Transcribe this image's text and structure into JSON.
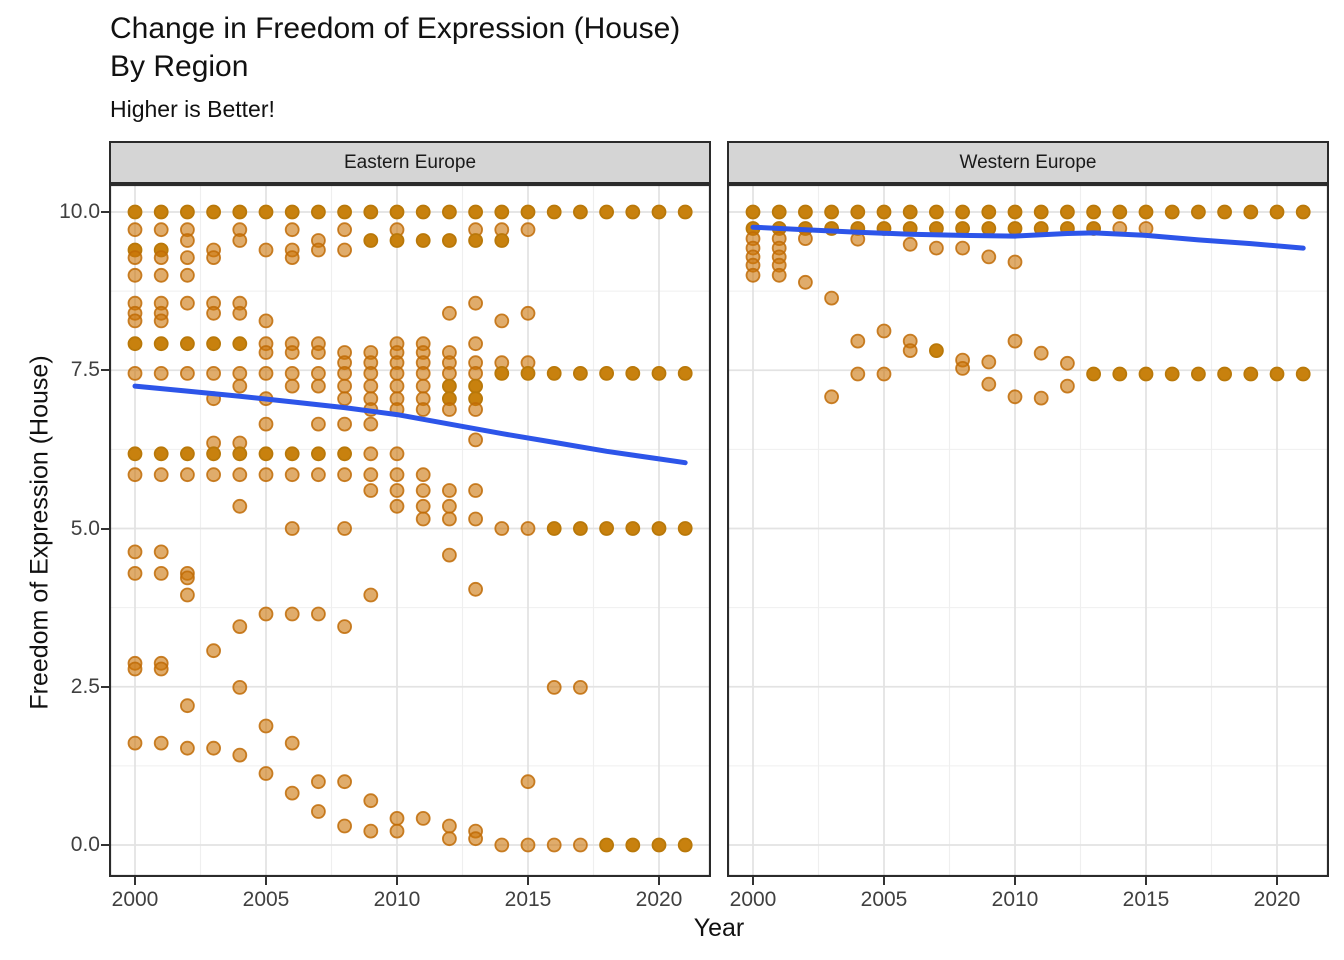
{
  "title": {
    "line1": "Change in Freedom of Expression (House)",
    "line2": "By Region"
  },
  "subtitle": "Higher is Better!",
  "axes": {
    "x_label": "Year",
    "y_label": "Freedom of Expression (House)",
    "x_ticks": [
      2000,
      2005,
      2010,
      2015,
      2020
    ],
    "x_minor": [
      2002.5,
      2007.5,
      2012.5,
      2017.5
    ],
    "y_ticks": [
      "10.0",
      "7.5",
      "5.0",
      "2.5",
      "0.0"
    ],
    "y_tick_values": [
      10,
      7.5,
      5,
      2.5,
      0
    ],
    "y_minor": [
      8.75,
      6.25,
      3.75,
      1.25
    ],
    "x_range": [
      1999,
      2022
    ],
    "y_range": [
      -0.5,
      10.5
    ]
  },
  "style": {
    "point_light_fill": "rgba(203,116,8,0.6)",
    "point_light_stroke": "rgba(191,107,6,0.85)",
    "point_dark_fill": "#C8810E",
    "point_dark_stroke": "#B97809",
    "trend_color": "#2D55E9",
    "strip_bg": "#D5D5D5",
    "panel_border": "#2B2B2B",
    "grid_major": "#E3E3E3",
    "grid_minor": "#EFEFEF",
    "tick_text": "#404040"
  },
  "chart_data": {
    "type": "scatter",
    "title": "Change in Freedom of Expression (House) By Region",
    "subtitle": "Higher is Better!",
    "xlabel": "Year",
    "ylabel": "Freedom of Expression (House)",
    "facets": [
      {
        "label": "Eastern Europe",
        "point_rows": [
          {
            "value": 10.0,
            "weight": 2,
            "years": [
              2000,
              2001,
              2002,
              2003,
              2004,
              2005,
              2006,
              2007,
              2008,
              2009,
              2010,
              2011,
              2012,
              2013,
              2014,
              2015,
              2016,
              2017,
              2018,
              2019,
              2020,
              2021
            ]
          },
          {
            "value": 9.72,
            "weight": 1,
            "years": [
              2000,
              2001,
              2002,
              2004,
              2006,
              2008,
              2010,
              2013,
              2014,
              2015
            ]
          },
          {
            "value": 9.55,
            "weight": 1,
            "years": [
              2002,
              2004,
              2007
            ]
          },
          {
            "value": 9.55,
            "weight": 2,
            "years": [
              2009,
              2010,
              2011,
              2012,
              2013,
              2014
            ]
          },
          {
            "value": 9.4,
            "weight": 2,
            "years": [
              2000,
              2001
            ]
          },
          {
            "value": 9.4,
            "weight": 1,
            "years": [
              2003,
              2005,
              2006,
              2007,
              2008
            ]
          },
          {
            "value": 9.28,
            "weight": 1,
            "years": [
              2000,
              2001,
              2002,
              2003,
              2006
            ]
          },
          {
            "value": 9.0,
            "weight": 1,
            "years": [
              2000,
              2001,
              2002
            ]
          },
          {
            "value": 8.56,
            "weight": 1,
            "years": [
              2000,
              2001,
              2002,
              2003,
              2004,
              2013
            ]
          },
          {
            "value": 8.4,
            "weight": 1,
            "years": [
              2000,
              2001,
              2003,
              2004,
              2012,
              2015
            ]
          },
          {
            "value": 8.28,
            "weight": 1,
            "years": [
              2000,
              2001,
              2005,
              2014
            ]
          },
          {
            "value": 7.92,
            "weight": 2,
            "years": [
              2000,
              2001,
              2002,
              2003,
              2004
            ]
          },
          {
            "value": 7.92,
            "weight": 1,
            "years": [
              2005,
              2006,
              2007,
              2010,
              2011,
              2013
            ]
          },
          {
            "value": 7.78,
            "weight": 1,
            "years": [
              2005,
              2006,
              2007,
              2008,
              2009,
              2010,
              2011,
              2012
            ]
          },
          {
            "value": 7.62,
            "weight": 1,
            "years": [
              2008,
              2009,
              2010,
              2011,
              2012,
              2013,
              2014,
              2015
            ]
          },
          {
            "value": 7.45,
            "weight": 1,
            "years": [
              2000,
              2001,
              2002,
              2003,
              2004,
              2005,
              2006,
              2007,
              2008,
              2009,
              2010,
              2011,
              2012,
              2013
            ]
          },
          {
            "value": 7.45,
            "weight": 2,
            "years": [
              2014,
              2015,
              2016,
              2017,
              2018,
              2019,
              2020,
              2021
            ]
          },
          {
            "value": 7.25,
            "weight": 1,
            "years": [
              2004,
              2006,
              2007,
              2008,
              2009,
              2010,
              2011
            ]
          },
          {
            "value": 7.25,
            "weight": 2,
            "years": [
              2012,
              2013
            ]
          },
          {
            "value": 7.05,
            "weight": 1,
            "years": [
              2003,
              2005,
              2008,
              2009,
              2010,
              2011
            ]
          },
          {
            "value": 7.05,
            "weight": 2,
            "years": [
              2012,
              2013
            ]
          },
          {
            "value": 6.88,
            "weight": 1,
            "years": [
              2009,
              2010,
              2011,
              2012,
              2013
            ]
          },
          {
            "value": 6.65,
            "weight": 1,
            "years": [
              2005,
              2007,
              2008,
              2009
            ]
          },
          {
            "value": 6.4,
            "weight": 1,
            "years": [
              2013
            ]
          },
          {
            "value": 6.35,
            "weight": 1,
            "years": [
              2003,
              2004
            ]
          },
          {
            "value": 6.18,
            "weight": 2,
            "years": [
              2000,
              2001,
              2002,
              2003,
              2004,
              2005,
              2006,
              2007,
              2008
            ]
          },
          {
            "value": 6.18,
            "weight": 1,
            "years": [
              2009,
              2010
            ]
          },
          {
            "value": 5.85,
            "weight": 1,
            "years": [
              2000,
              2001,
              2002,
              2003,
              2004,
              2005,
              2006,
              2007,
              2008,
              2009,
              2010,
              2011
            ]
          },
          {
            "value": 5.6,
            "weight": 1,
            "years": [
              2009,
              2010,
              2011,
              2012,
              2013
            ]
          },
          {
            "value": 5.35,
            "weight": 1,
            "years": [
              2004,
              2010,
              2011,
              2012
            ]
          },
          {
            "value": 5.15,
            "weight": 1,
            "years": [
              2011,
              2012,
              2013
            ]
          },
          {
            "value": 5.0,
            "weight": 1,
            "years": [
              2006,
              2008,
              2014,
              2015
            ]
          },
          {
            "value": 5.0,
            "weight": 2,
            "years": [
              2016,
              2017,
              2018,
              2019,
              2020,
              2021
            ]
          },
          {
            "value": 4.63,
            "weight": 1,
            "years": [
              2000,
              2001
            ]
          },
          {
            "value": 4.58,
            "weight": 1,
            "years": [
              2012
            ]
          },
          {
            "value": 4.29,
            "weight": 1,
            "years": [
              2000,
              2001,
              2002
            ]
          },
          {
            "value": 4.22,
            "weight": 1,
            "years": [
              2002
            ]
          },
          {
            "value": 4.04,
            "weight": 1,
            "years": [
              2013
            ]
          },
          {
            "value": 3.95,
            "weight": 1,
            "years": [
              2002,
              2009
            ]
          },
          {
            "value": 3.65,
            "weight": 1,
            "years": [
              2005,
              2006,
              2007
            ]
          },
          {
            "value": 3.45,
            "weight": 1,
            "years": [
              2004,
              2008
            ]
          },
          {
            "value": 3.07,
            "weight": 1,
            "years": [
              2003
            ]
          },
          {
            "value": 2.87,
            "weight": 1,
            "years": [
              2000,
              2001
            ]
          },
          {
            "value": 2.78,
            "weight": 1,
            "years": [
              2000,
              2001
            ]
          },
          {
            "value": 2.49,
            "weight": 1,
            "years": [
              2004,
              2016,
              2017
            ]
          },
          {
            "value": 2.2,
            "weight": 1,
            "years": [
              2002
            ]
          },
          {
            "value": 1.88,
            "weight": 1,
            "years": [
              2005
            ]
          },
          {
            "value": 1.61,
            "weight": 1,
            "years": [
              2000,
              2001,
              2006
            ]
          },
          {
            "value": 1.53,
            "weight": 1,
            "years": [
              2002,
              2003
            ]
          },
          {
            "value": 1.42,
            "weight": 1,
            "years": [
              2004
            ]
          },
          {
            "value": 1.13,
            "weight": 1,
            "years": [
              2005
            ]
          },
          {
            "value": 1.0,
            "weight": 1,
            "years": [
              2007,
              2008,
              2015
            ]
          },
          {
            "value": 0.82,
            "weight": 1,
            "years": [
              2006
            ]
          },
          {
            "value": 0.7,
            "weight": 1,
            "years": [
              2009
            ]
          },
          {
            "value": 0.53,
            "weight": 1,
            "years": [
              2007
            ]
          },
          {
            "value": 0.42,
            "weight": 1,
            "years": [
              2010,
              2011
            ]
          },
          {
            "value": 0.3,
            "weight": 1,
            "years": [
              2008,
              2012
            ]
          },
          {
            "value": 0.22,
            "weight": 1,
            "years": [
              2009,
              2010,
              2013
            ]
          },
          {
            "value": 0.1,
            "weight": 1,
            "years": [
              2012,
              2013
            ]
          },
          {
            "value": 0.0,
            "weight": 1,
            "years": [
              2014,
              2015,
              2016,
              2017
            ]
          },
          {
            "value": 0.0,
            "weight": 2,
            "years": [
              2018,
              2019,
              2020,
              2021
            ]
          }
        ],
        "trend": [
          [
            2000,
            7.25
          ],
          [
            2002,
            7.17
          ],
          [
            2004,
            7.09
          ],
          [
            2006,
            7.0
          ],
          [
            2008,
            6.91
          ],
          [
            2010,
            6.8
          ],
          [
            2012,
            6.65
          ],
          [
            2014,
            6.5
          ],
          [
            2016,
            6.36
          ],
          [
            2018,
            6.22
          ],
          [
            2020,
            6.1
          ],
          [
            2021,
            6.04
          ]
        ]
      },
      {
        "label": "Western Europe",
        "point_rows": [
          {
            "value": 10.0,
            "weight": 2,
            "years": [
              2000,
              2001,
              2002,
              2003,
              2004,
              2005,
              2006,
              2007,
              2008,
              2009,
              2010,
              2011,
              2012,
              2013,
              2014,
              2015,
              2016,
              2017,
              2018,
              2019,
              2020,
              2021
            ]
          },
          {
            "value": 9.74,
            "weight": 2,
            "years": [
              2000,
              2001,
              2002,
              2003,
              2004,
              2005,
              2006,
              2007,
              2008,
              2009,
              2010,
              2011,
              2012,
              2013
            ]
          },
          {
            "value": 9.74,
            "weight": 1,
            "years": [
              2014,
              2015
            ]
          },
          {
            "value": 9.58,
            "weight": 1,
            "years": [
              2000,
              2001,
              2002
            ]
          },
          {
            "value": 9.57,
            "weight": 1,
            "years": [
              2004
            ]
          },
          {
            "value": 9.49,
            "weight": 1,
            "years": [
              2006
            ]
          },
          {
            "value": 9.43,
            "weight": 1,
            "years": [
              2000,
              2001,
              2007,
              2008
            ]
          },
          {
            "value": 9.29,
            "weight": 1,
            "years": [
              2000,
              2001,
              2009
            ]
          },
          {
            "value": 9.21,
            "weight": 1,
            "years": [
              2010
            ]
          },
          {
            "value": 9.16,
            "weight": 1,
            "years": [
              2000,
              2001
            ]
          },
          {
            "value": 9.0,
            "weight": 1,
            "years": [
              2000,
              2001
            ]
          },
          {
            "value": 8.89,
            "weight": 1,
            "years": [
              2002
            ]
          },
          {
            "value": 8.64,
            "weight": 1,
            "years": [
              2003
            ]
          },
          {
            "value": 8.12,
            "weight": 1,
            "years": [
              2005
            ]
          },
          {
            "value": 7.96,
            "weight": 1,
            "years": [
              2004,
              2006,
              2010
            ]
          },
          {
            "value": 7.81,
            "weight": 1,
            "years": [
              2006
            ]
          },
          {
            "value": 7.81,
            "weight": 2,
            "years": [
              2007
            ]
          },
          {
            "value": 7.77,
            "weight": 1,
            "years": [
              2011
            ]
          },
          {
            "value": 7.66,
            "weight": 1,
            "years": [
              2008
            ]
          },
          {
            "value": 7.63,
            "weight": 1,
            "years": [
              2009
            ]
          },
          {
            "value": 7.61,
            "weight": 1,
            "years": [
              2012
            ]
          },
          {
            "value": 7.53,
            "weight": 1,
            "years": [
              2008
            ]
          },
          {
            "value": 7.44,
            "weight": 1,
            "years": [
              2004,
              2005
            ]
          },
          {
            "value": 7.44,
            "weight": 2,
            "years": [
              2013,
              2014,
              2015,
              2016,
              2017,
              2018,
              2019,
              2020,
              2021
            ]
          },
          {
            "value": 7.28,
            "weight": 1,
            "years": [
              2009
            ]
          },
          {
            "value": 7.25,
            "weight": 1,
            "years": [
              2012
            ]
          },
          {
            "value": 7.08,
            "weight": 1,
            "years": [
              2003,
              2010
            ]
          },
          {
            "value": 7.06,
            "weight": 1,
            "years": [
              2011
            ]
          }
        ],
        "trend": [
          [
            2000,
            9.76
          ],
          [
            2002,
            9.72
          ],
          [
            2004,
            9.68
          ],
          [
            2006,
            9.65
          ],
          [
            2008,
            9.63
          ],
          [
            2010,
            9.62
          ],
          [
            2012,
            9.66
          ],
          [
            2013,
            9.67
          ],
          [
            2015,
            9.63
          ],
          [
            2017,
            9.56
          ],
          [
            2019,
            9.5
          ],
          [
            2021,
            9.43
          ]
        ]
      }
    ]
  }
}
